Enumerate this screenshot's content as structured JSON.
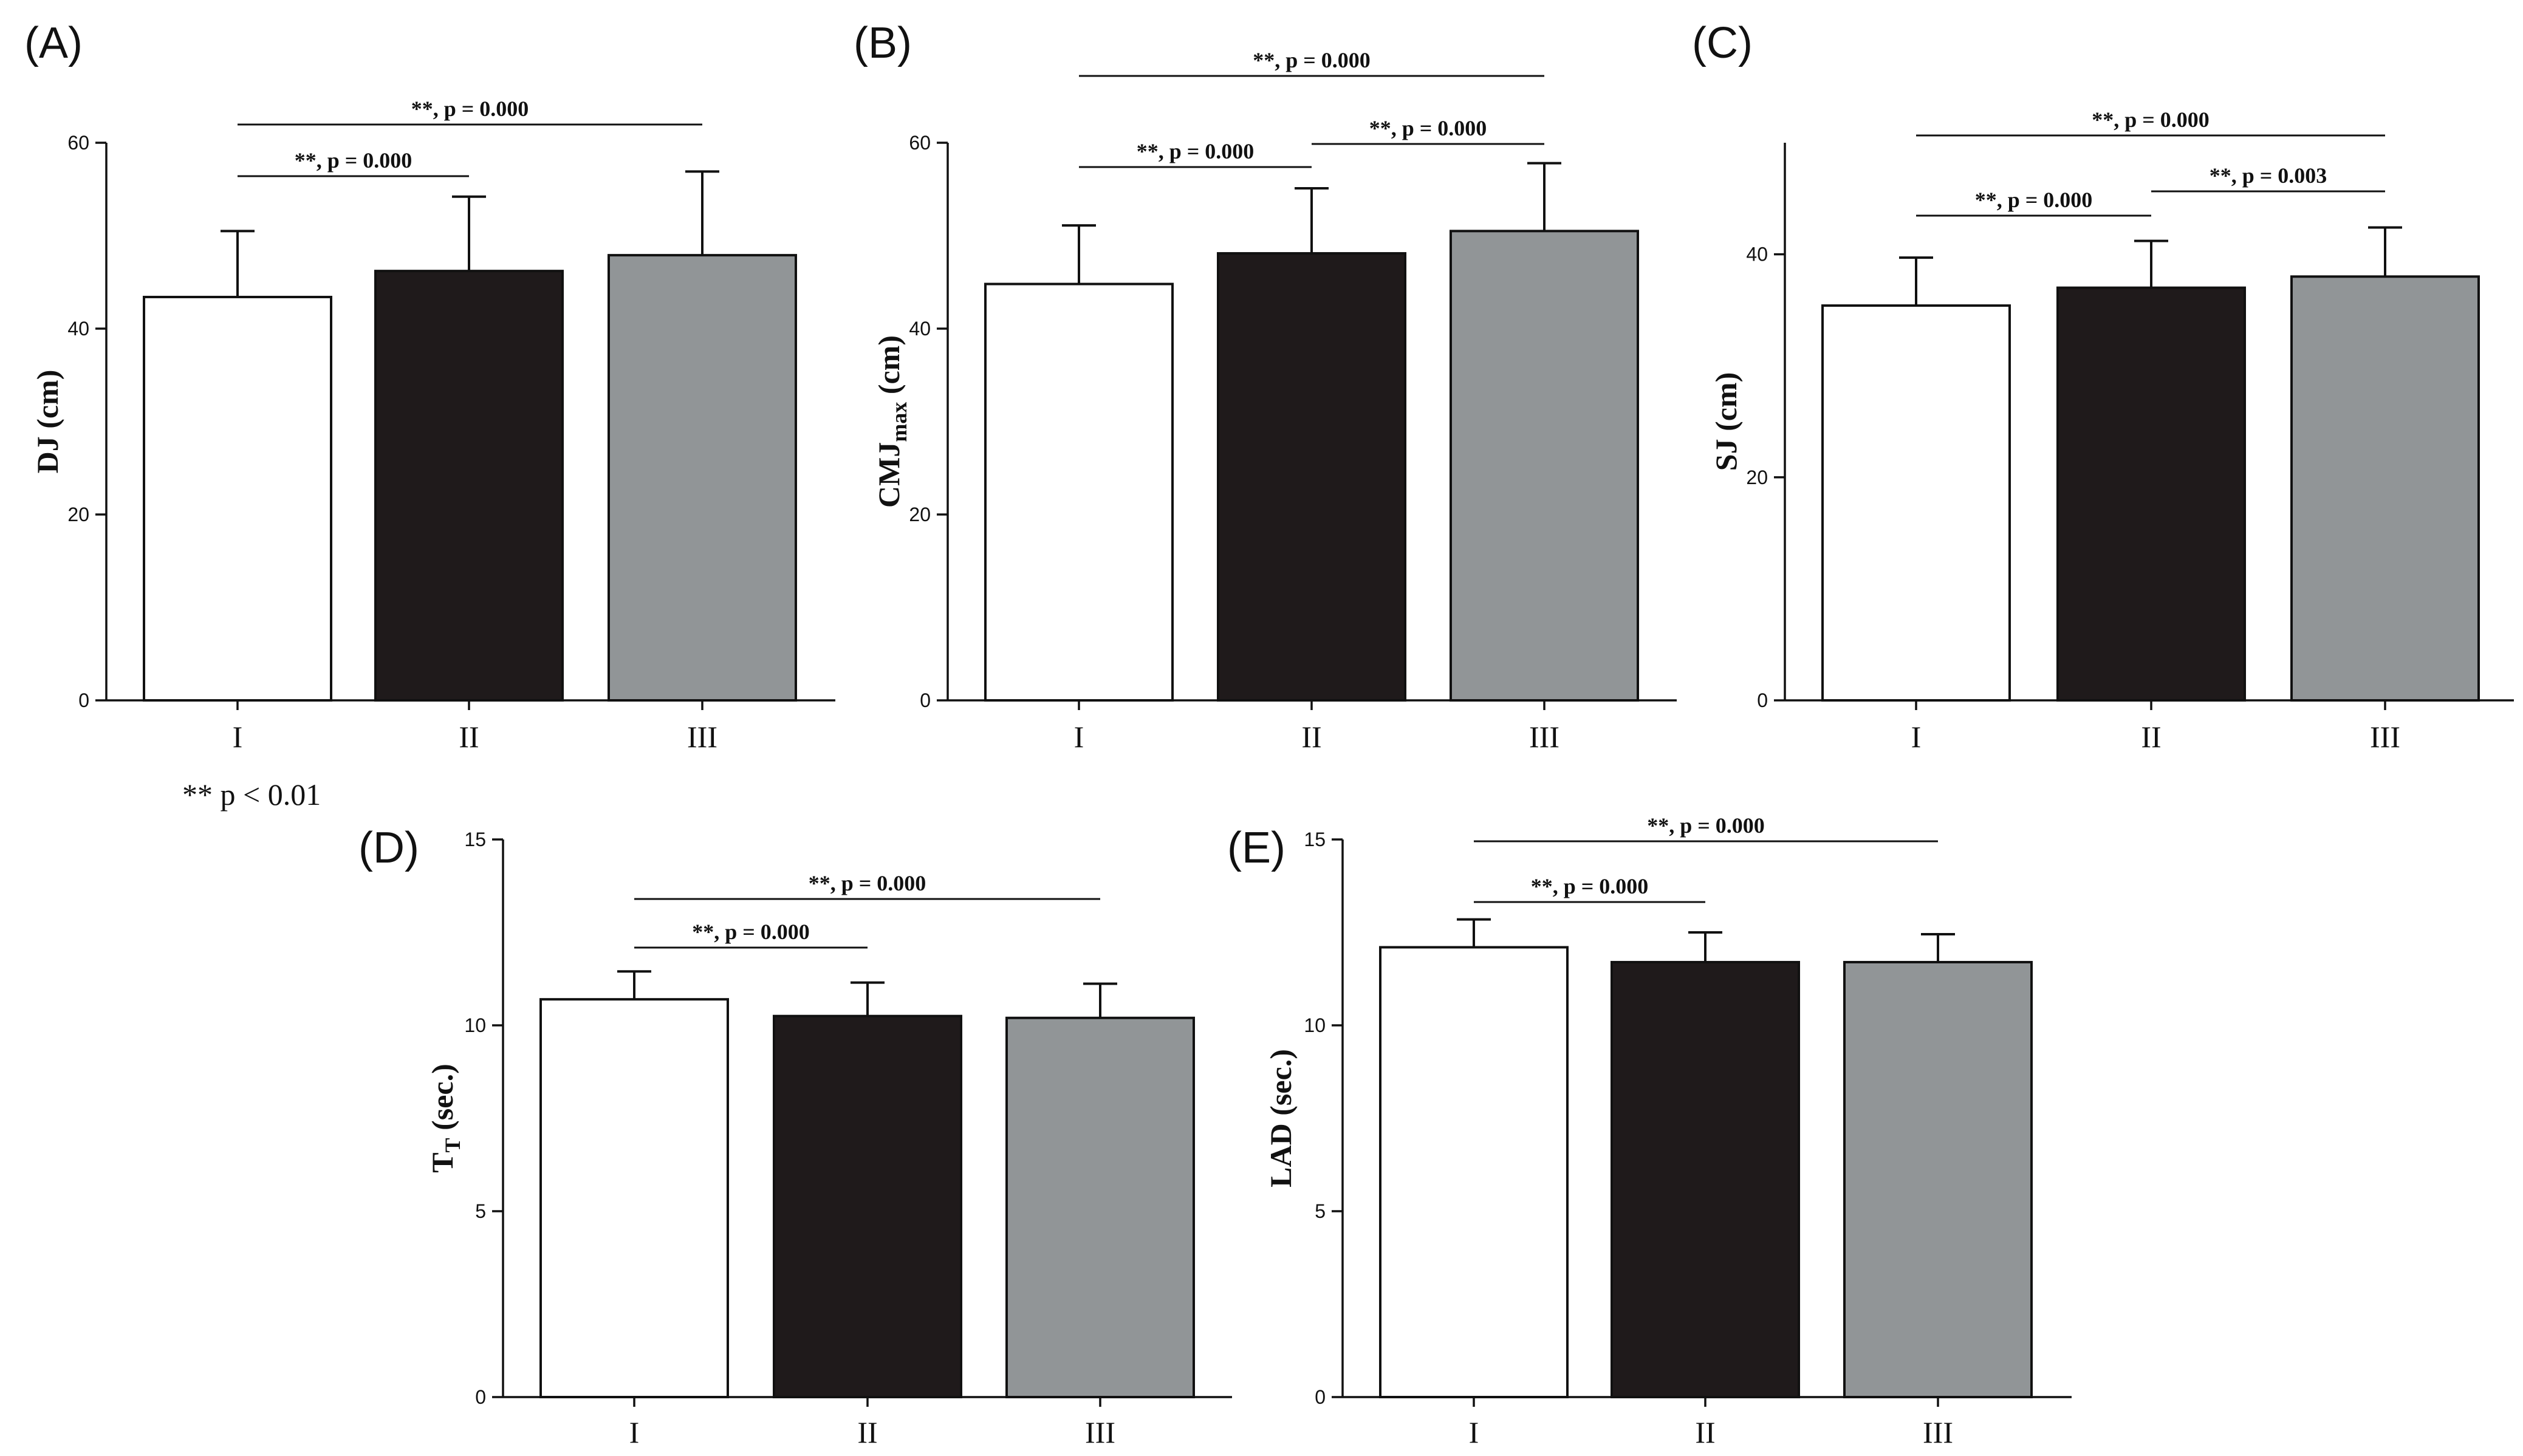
{
  "footnote": "** p < 0.01",
  "colors": {
    "I": "#ffffff",
    "II": "#1f1a1b",
    "III": "#919597"
  },
  "chart_data": [
    {
      "type": "bar",
      "panel": "(A)",
      "ylabel": "DJ (cm)",
      "ylabel_sub": "",
      "ylabel_tail": "",
      "categories": [
        "I",
        "II",
        "III"
      ],
      "values": [
        43.4,
        46.2,
        47.9
      ],
      "errors": [
        7.1,
        8.0,
        9.0
      ],
      "ylim": [
        0,
        60
      ],
      "yticks": [
        0,
        20,
        40,
        60
      ],
      "comparisons": [
        {
          "from": 0,
          "to": 1,
          "label": "**, p = 0.000"
        },
        {
          "from": 0,
          "to": 2,
          "label": "**, p = 0.000"
        }
      ]
    },
    {
      "type": "bar",
      "panel": "(B)",
      "ylabel": "CMJ",
      "ylabel_sub": "max",
      "ylabel_tail": " (cm)",
      "categories": [
        "I",
        "II",
        "III"
      ],
      "values": [
        44.8,
        48.1,
        50.5
      ],
      "errors": [
        6.3,
        7.0,
        7.3
      ],
      "ylim": [
        0,
        60
      ],
      "yticks": [
        0,
        20,
        40,
        60
      ],
      "comparisons": [
        {
          "from": 0,
          "to": 1,
          "label": "**, p = 0.000"
        },
        {
          "from": 1,
          "to": 2,
          "label": "**, p = 0.000"
        },
        {
          "from": 0,
          "to": 2,
          "label": "**, p = 0.000"
        }
      ]
    },
    {
      "type": "bar",
      "panel": "(C)",
      "ylabel": "SJ (cm)",
      "ylabel_sub": "",
      "ylabel_tail": "",
      "categories": [
        "I",
        "II",
        "III"
      ],
      "values": [
        35.4,
        37.0,
        38.0
      ],
      "errors": [
        4.3,
        4.2,
        4.4
      ],
      "ylim": [
        0,
        50
      ],
      "yticks": [
        0,
        20,
        40
      ],
      "comparisons": [
        {
          "from": 0,
          "to": 1,
          "label": "**, p = 0.000"
        },
        {
          "from": 1,
          "to": 2,
          "label": "**, p = 0.003"
        },
        {
          "from": 0,
          "to": 2,
          "label": "**, p = 0.000"
        }
      ]
    },
    {
      "type": "bar",
      "panel": "(D)",
      "ylabel": "T",
      "ylabel_sub": "T",
      "ylabel_tail": " (sec.)",
      "categories": [
        "I",
        "II",
        "III"
      ],
      "values": [
        10.7,
        10.25,
        10.2
      ],
      "errors": [
        0.75,
        0.9,
        0.92
      ],
      "ylim": [
        0,
        15
      ],
      "yticks": [
        0,
        5,
        10,
        15
      ],
      "comparisons": [
        {
          "from": 0,
          "to": 1,
          "label": "**, p = 0.000"
        },
        {
          "from": 0,
          "to": 2,
          "label": "**, p = 0.000"
        }
      ]
    },
    {
      "type": "bar",
      "panel": "(E)",
      "ylabel": "LAD (sec.)",
      "ylabel_sub": "",
      "ylabel_tail": "",
      "categories": [
        "I",
        "II",
        "III"
      ],
      "values": [
        12.1,
        11.7,
        11.7
      ],
      "errors": [
        0.75,
        0.8,
        0.75
      ],
      "ylim": [
        0,
        15
      ],
      "yticks": [
        0,
        5,
        10,
        15
      ],
      "comparisons": [
        {
          "from": 0,
          "to": 1,
          "label": "**, p = 0.000"
        },
        {
          "from": 0,
          "to": 2,
          "label": "**, p = 0.000"
        }
      ]
    }
  ]
}
